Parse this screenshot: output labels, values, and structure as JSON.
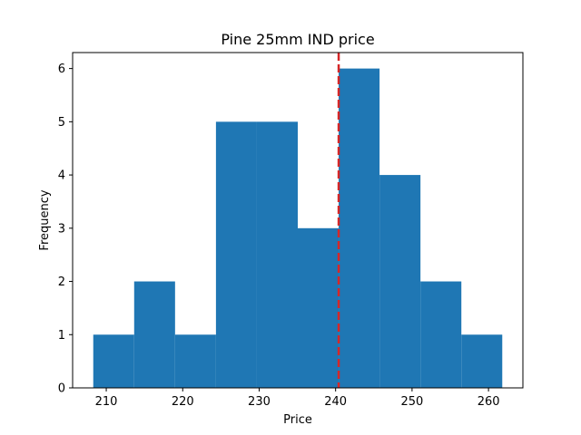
{
  "chart_data": {
    "type": "bar",
    "title": "Pine 25mm IND price",
    "xlabel": "Price",
    "ylabel": "Frequency",
    "bin_edges": [
      208.3,
      213.65,
      219.0,
      224.35,
      229.7,
      235.05,
      240.4,
      245.75,
      251.1,
      256.45,
      261.8
    ],
    "counts": [
      1,
      2,
      1,
      5,
      5,
      3,
      6,
      4,
      2,
      1
    ],
    "xlim": [
      205.6,
      264.5
    ],
    "ylim": [
      0,
      6.3
    ],
    "xticks": [
      210,
      220,
      230,
      240,
      250,
      260
    ],
    "yticks": [
      0,
      1,
      2,
      3,
      4,
      5,
      6
    ],
    "reference_line": {
      "x": 240.4,
      "style": "dashed",
      "color": "#d62728"
    },
    "bar_color": "#1f77b4",
    "grid": false,
    "legend": "none"
  }
}
